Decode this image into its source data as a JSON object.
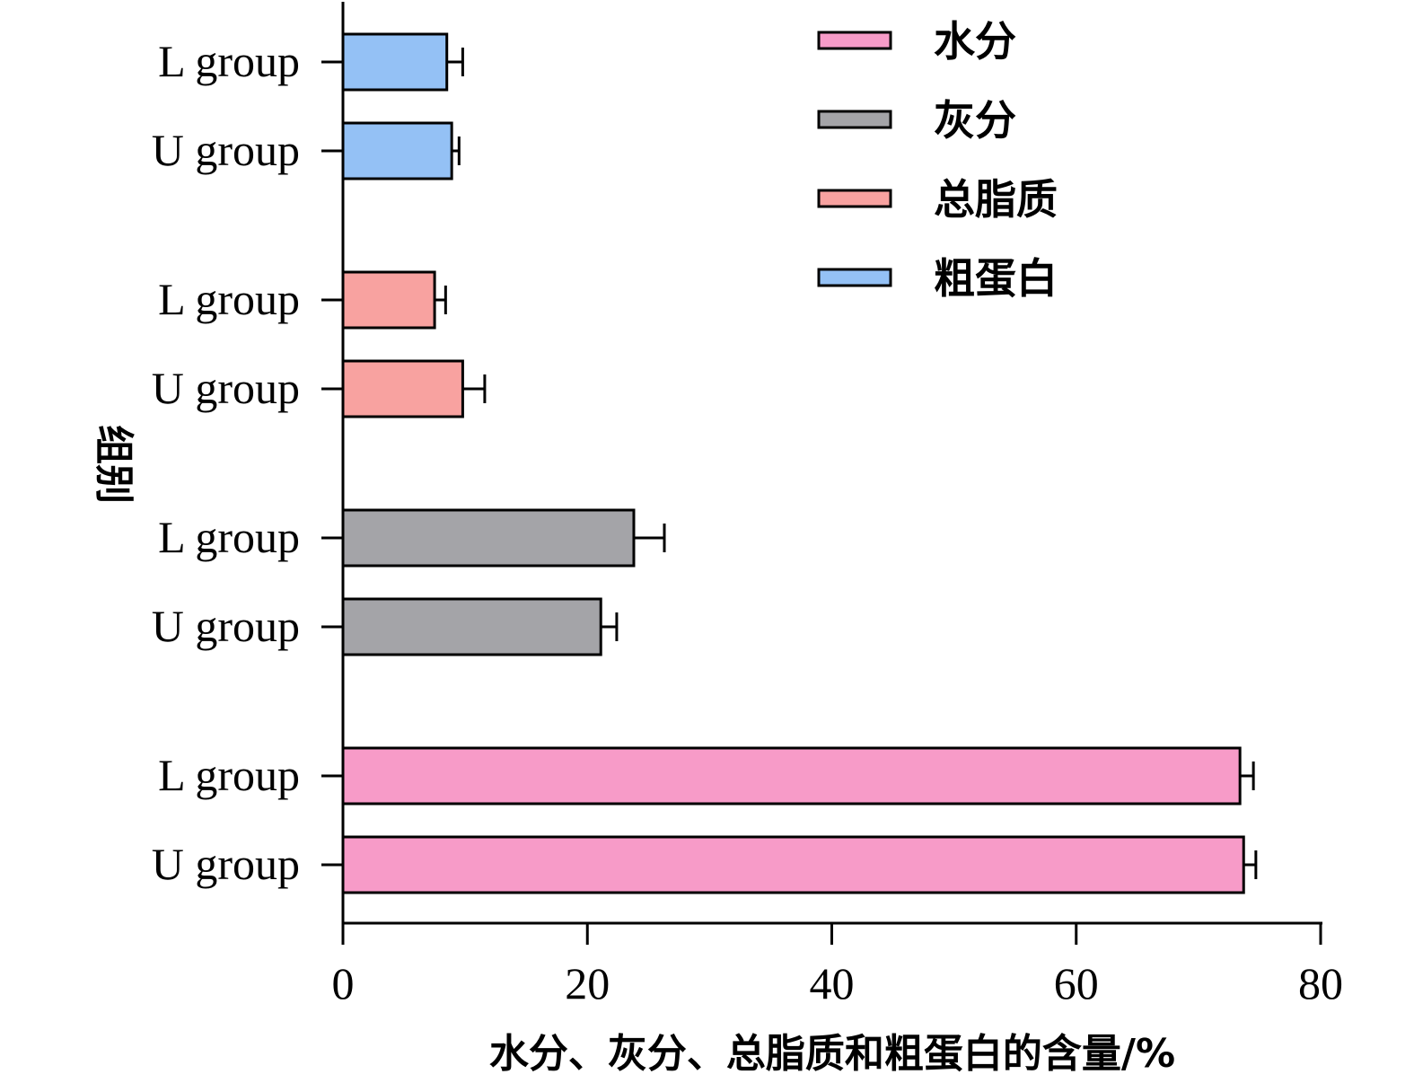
{
  "chart_data": {
    "type": "bar",
    "orientation": "horizontal",
    "title": "",
    "xlabel": "水分、灰分、总脂质和粗蛋白的含量/%",
    "ylabel": "组别",
    "xlim": [
      0,
      80
    ],
    "xticks": [
      0,
      20,
      40,
      60,
      80
    ],
    "grid": false,
    "legend_position": "top-right",
    "groups": [
      {
        "series": "粗蛋白",
        "color": "#94c1f5",
        "bars": [
          {
            "label": "L group",
            "value": 8.5,
            "error": 1.3
          },
          {
            "label": "U group",
            "value": 8.9,
            "error": 0.6
          }
        ]
      },
      {
        "series": "总脂质",
        "color": "#f8a2a0",
        "bars": [
          {
            "label": "L group",
            "value": 7.5,
            "error": 0.9
          },
          {
            "label": "U group",
            "value": 9.8,
            "error": 1.8
          }
        ]
      },
      {
        "series": "灰分",
        "color": "#a4a4a8",
        "bars": [
          {
            "label": "L group",
            "value": 23.8,
            "error": 2.5
          },
          {
            "label": "U group",
            "value": 21.1,
            "error": 1.3
          }
        ]
      },
      {
        "series": "水分",
        "color": "#f79bc8",
        "bars": [
          {
            "label": "L group",
            "value": 73.4,
            "error": 1.1
          },
          {
            "label": "U group",
            "value": 73.7,
            "error": 1.0
          }
        ]
      }
    ],
    "legend": [
      {
        "name": "水分",
        "color": "#f79bc8"
      },
      {
        "name": "灰分",
        "color": "#a4a4a8"
      },
      {
        "name": "总脂质",
        "color": "#f8a2a0"
      },
      {
        "name": "粗蛋白",
        "color": "#94c1f5"
      }
    ]
  }
}
